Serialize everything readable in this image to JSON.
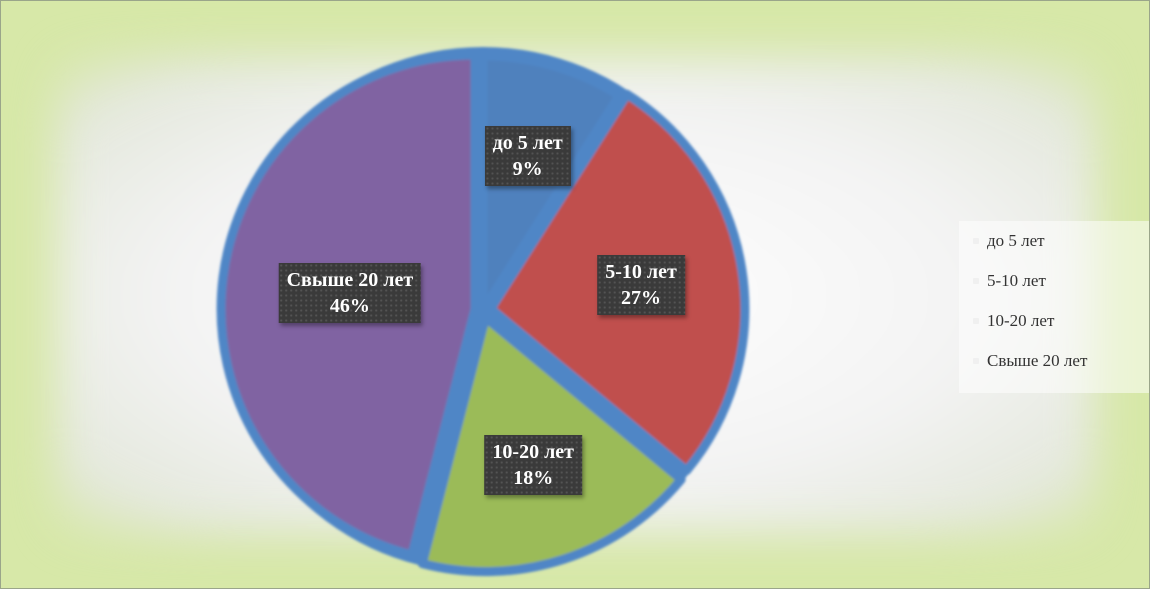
{
  "chart_data": {
    "type": "pie",
    "title": "",
    "categories": [
      "до 5 лет",
      "5-10 лет",
      "10-20 лет",
      "Свыше 20 лет"
    ],
    "values": [
      9,
      27,
      18,
      46
    ],
    "value_labels": [
      "9%",
      "27%",
      "18%",
      "46%"
    ],
    "colors": [
      "#4f81bd",
      "#c0504d",
      "#9bbb59",
      "#8064a2"
    ],
    "outline_color": "#4f86c6",
    "legend_placement": "right"
  }
}
